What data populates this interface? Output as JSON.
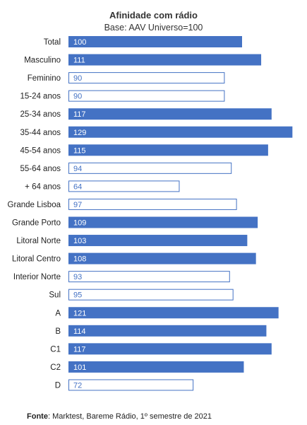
{
  "chart_data": {
    "type": "bar",
    "orientation": "horizontal",
    "title": "Afinidade com rádio",
    "subtitle": "Base: AAV Universo=100",
    "categories": [
      "Total",
      "Masculino",
      "Feminino",
      "15-24 anos",
      "25-34 anos",
      "35-44 anos",
      "45-54 anos",
      "55-64 anos",
      "+ 64  anos",
      "Grande Lisboa",
      "Grande Porto",
      "Litoral Norte",
      "Litoral Centro",
      "Interior Norte",
      "Sul",
      "A",
      "B",
      "C1",
      "C2",
      "D"
    ],
    "values": [
      100,
      111,
      90,
      90,
      117,
      129,
      115,
      94,
      64,
      97,
      109,
      103,
      108,
      93,
      95,
      121,
      114,
      117,
      101,
      72
    ],
    "baseline": 100,
    "colors": {
      "above_or_equal_baseline": "#4472c4",
      "below_baseline_fill": "#ffffff",
      "below_baseline_border": "#4472c4",
      "text_on_dark": "#ffffff",
      "text_on_light": "#4472c4"
    }
  },
  "source": {
    "label": "Fonte",
    "text": ": Marktest, Bareme Rádio, 1º semestre de 2021"
  }
}
